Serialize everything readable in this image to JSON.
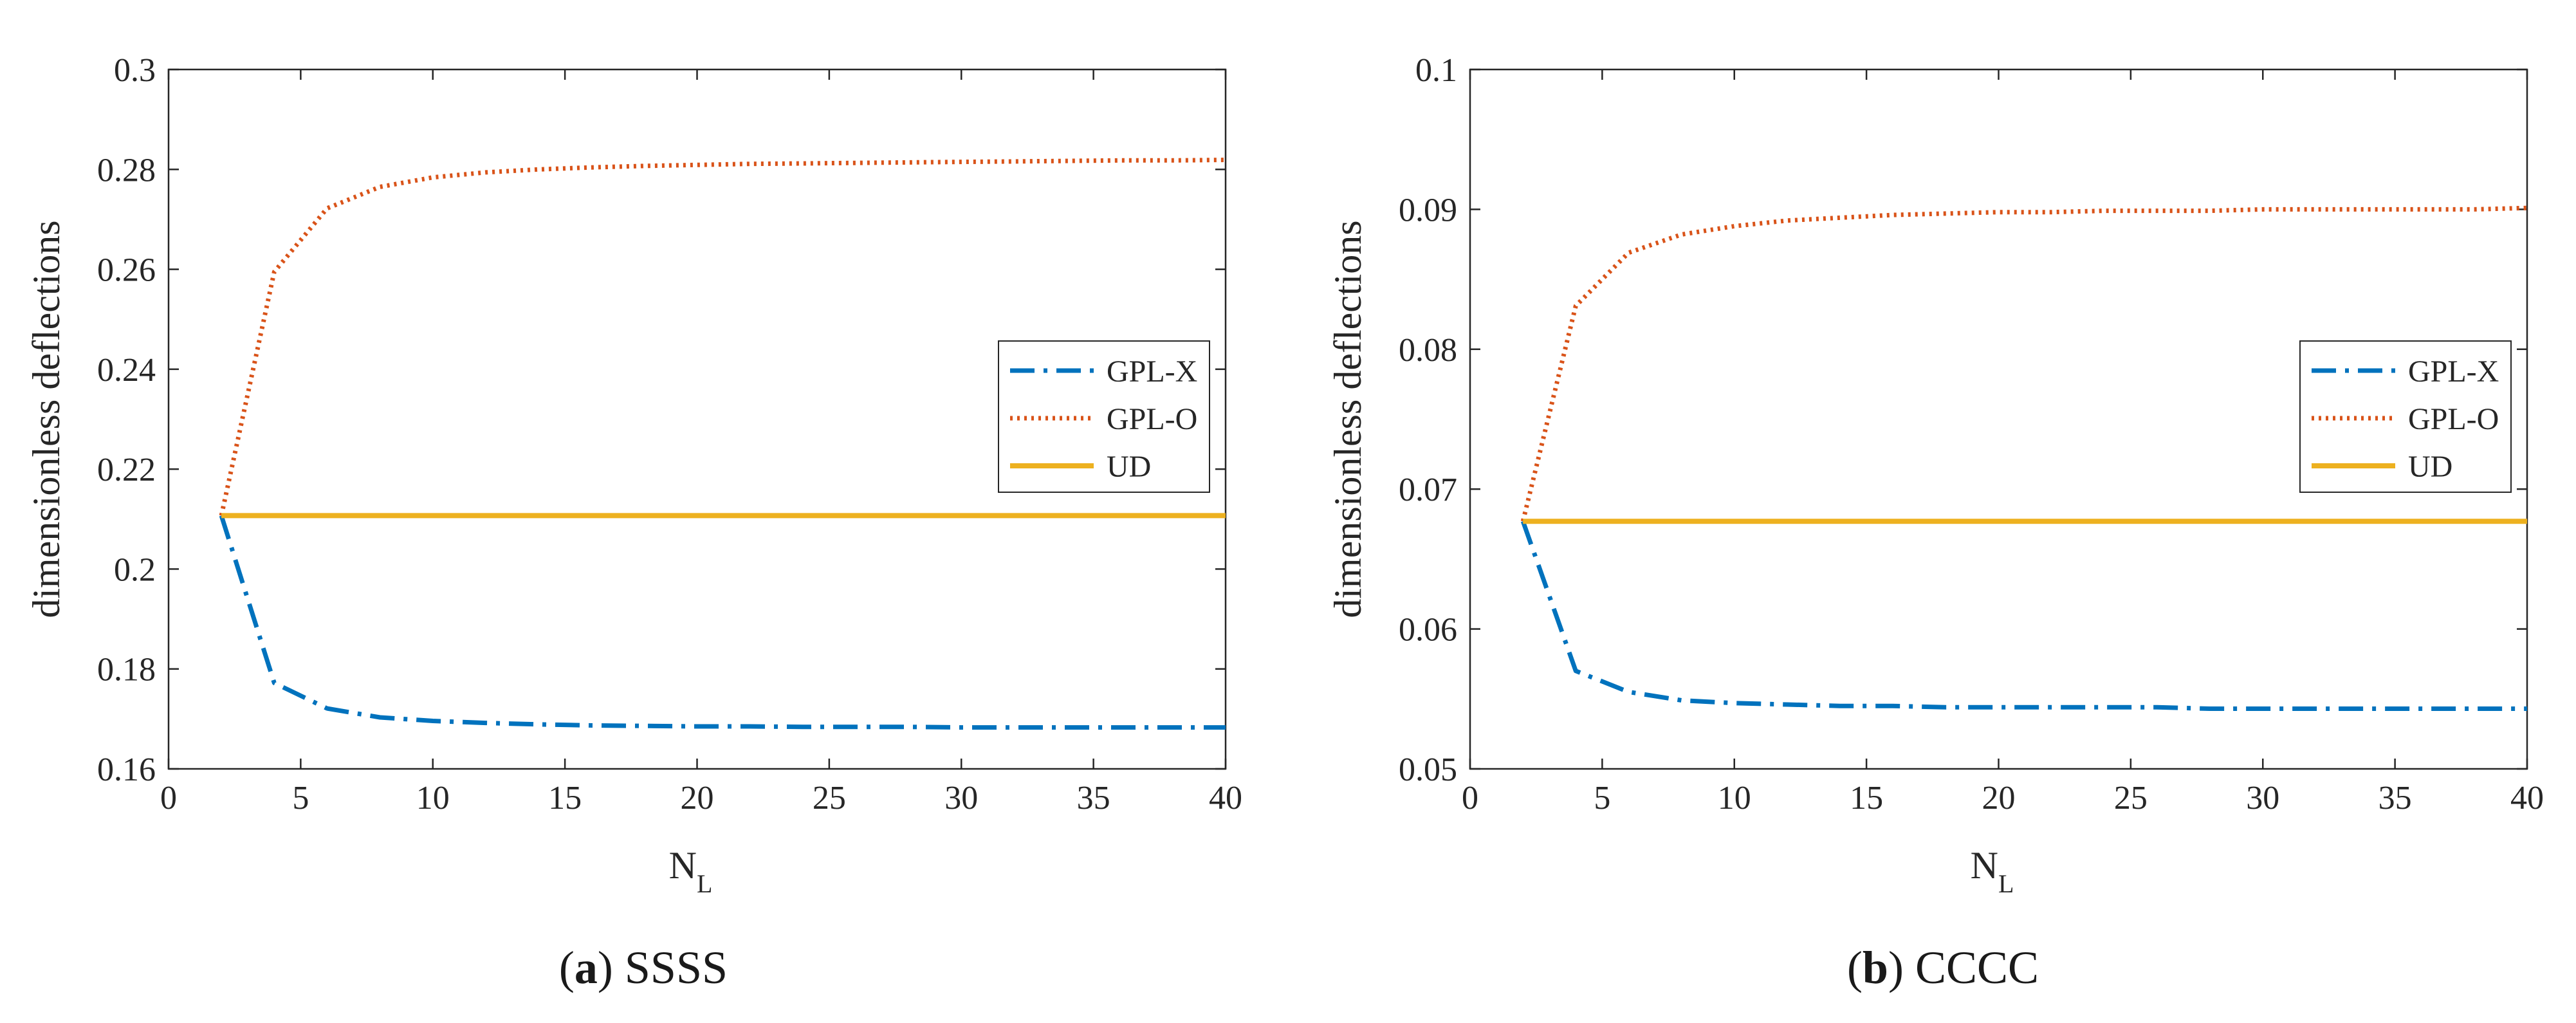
{
  "chart_data": [
    {
      "type": "line",
      "panel_letter": "a",
      "caption": "SSSS",
      "xlabel": "N",
      "xlabel_sub": "L",
      "ylabel": "dimensionless deflections",
      "xlim": [
        0,
        40
      ],
      "ylim": [
        0.16,
        0.3
      ],
      "xticks": [
        0,
        5,
        10,
        15,
        20,
        25,
        30,
        35,
        40
      ],
      "xtick_labels": [
        "0",
        "5",
        "10",
        "15",
        "20",
        "25",
        "30",
        "35",
        "40"
      ],
      "yticks": [
        0.16,
        0.18,
        0.2,
        0.22,
        0.24,
        0.26,
        0.28,
        0.3
      ],
      "ytick_labels": [
        "0.16",
        "0.18",
        "0.2",
        "0.22",
        "0.24",
        "0.26",
        "0.28",
        "0.3"
      ],
      "legend_position": "right",
      "x": [
        2,
        4,
        6,
        8,
        10,
        12,
        14,
        16,
        18,
        20,
        22,
        24,
        26,
        28,
        30,
        32,
        34,
        36,
        38,
        40
      ],
      "series": [
        {
          "name": "GPL-X",
          "color": "#0072BD",
          "style": "dashdot",
          "values": [
            0.2107,
            0.1772,
            0.1721,
            0.1703,
            0.1696,
            0.1692,
            0.1689,
            0.1687,
            0.1686,
            0.1685,
            0.1685,
            0.1684,
            0.1684,
            0.1684,
            0.1683,
            0.1683,
            0.1683,
            0.1683,
            0.1683,
            0.1683
          ]
        },
        {
          "name": "GPL-O",
          "color": "#D95319",
          "style": "dotted",
          "values": [
            0.2107,
            0.2595,
            0.2722,
            0.2765,
            0.2784,
            0.2794,
            0.28,
            0.2804,
            0.2807,
            0.2809,
            0.2811,
            0.2812,
            0.2813,
            0.2814,
            0.2815,
            0.2816,
            0.2817,
            0.2818,
            0.2818,
            0.2819
          ]
        },
        {
          "name": "UD",
          "color": "#EDB120",
          "style": "solid",
          "values": [
            0.2107,
            0.2107,
            0.2107,
            0.2107,
            0.2107,
            0.2107,
            0.2107,
            0.2107,
            0.2107,
            0.2107,
            0.2107,
            0.2107,
            0.2107,
            0.2107,
            0.2107,
            0.2107,
            0.2107,
            0.2107,
            0.2107,
            0.2107
          ]
        }
      ]
    },
    {
      "type": "line",
      "panel_letter": "b",
      "caption": "CCCC",
      "xlabel": "N",
      "xlabel_sub": "L",
      "ylabel": "dimensionless deflections",
      "xlim": [
        0,
        40
      ],
      "ylim": [
        0.05,
        0.1
      ],
      "xticks": [
        0,
        5,
        10,
        15,
        20,
        25,
        30,
        35,
        40
      ],
      "xtick_labels": [
        "0",
        "5",
        "10",
        "15",
        "20",
        "25",
        "30",
        "35",
        "40"
      ],
      "yticks": [
        0.05,
        0.06,
        0.07,
        0.08,
        0.09,
        0.1
      ],
      "ytick_labels": [
        "0.05",
        "0.06",
        "0.07",
        "0.08",
        "0.09",
        "0.1"
      ],
      "legend_position": "right",
      "x": [
        2,
        4,
        6,
        8,
        10,
        12,
        14,
        16,
        18,
        20,
        22,
        24,
        26,
        28,
        30,
        32,
        34,
        36,
        38,
        40
      ],
      "series": [
        {
          "name": "GPL-X",
          "color": "#0072BD",
          "style": "dashdot",
          "values": [
            0.0677,
            0.057,
            0.0555,
            0.0549,
            0.0547,
            0.0546,
            0.0545,
            0.0545,
            0.0544,
            0.0544,
            0.0544,
            0.0544,
            0.0544,
            0.0543,
            0.0543,
            0.0543,
            0.0543,
            0.0543,
            0.0543,
            0.0543
          ]
        },
        {
          "name": "GPL-O",
          "color": "#D95319",
          "style": "dotted",
          "values": [
            0.0677,
            0.0831,
            0.0869,
            0.0882,
            0.0888,
            0.0892,
            0.0894,
            0.0896,
            0.0897,
            0.0898,
            0.0898,
            0.0899,
            0.0899,
            0.0899,
            0.09,
            0.09,
            0.09,
            0.09,
            0.09,
            0.0901
          ]
        },
        {
          "name": "UD",
          "color": "#EDB120",
          "style": "solid",
          "values": [
            0.0677,
            0.0677,
            0.0677,
            0.0677,
            0.0677,
            0.0677,
            0.0677,
            0.0677,
            0.0677,
            0.0677,
            0.0677,
            0.0677,
            0.0677,
            0.0677,
            0.0677,
            0.0677,
            0.0677,
            0.0677,
            0.0677,
            0.0677
          ]
        }
      ]
    }
  ]
}
